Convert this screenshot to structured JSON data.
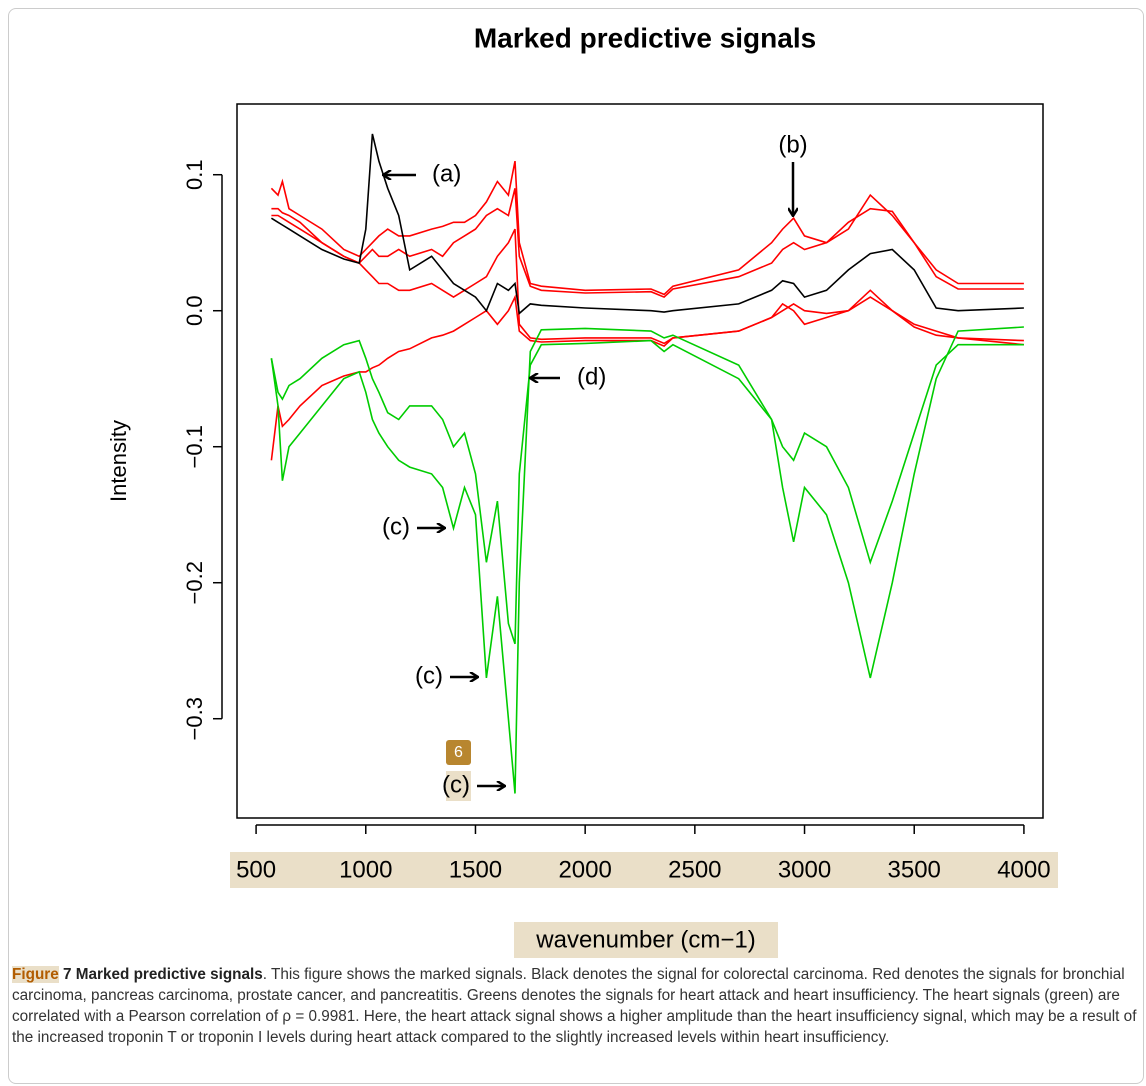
{
  "chart_data": {
    "type": "line",
    "title": "Marked predictive signals",
    "xlabel": "wavenumber (cm−1)",
    "ylabel": "Intensity",
    "xlim": [
      413,
      4087
    ],
    "ylim": [
      -0.373,
      0.152
    ],
    "xticks": [
      500,
      1000,
      1500,
      2000,
      2500,
      3000,
      3500,
      4000
    ],
    "yticks": [
      {
        "value": -0.3,
        "label": "−0.3"
      },
      {
        "value": -0.2,
        "label": "−0.2"
      },
      {
        "value": -0.1,
        "label": "−0.1"
      },
      {
        "value": 0,
        "label": "0.0"
      },
      {
        "value": 0.1,
        "label": "0.1"
      }
    ],
    "x": [
      570,
      600,
      620,
      650,
      700,
      800,
      900,
      970,
      1000,
      1030,
      1060,
      1100,
      1150,
      1200,
      1300,
      1350,
      1400,
      1450,
      1500,
      1550,
      1600,
      1650,
      1680,
      1700,
      1750,
      1800,
      2000,
      2300,
      2360,
      2400,
      2700,
      2850,
      2900,
      2950,
      3000,
      3100,
      3200,
      3300,
      3400,
      3500,
      3600,
      3700,
      4000
    ],
    "series": [
      {
        "color": "#ff0000",
        "values": [
          0.09,
          0.085,
          0.095,
          0.075,
          0.07,
          0.06,
          0.045,
          0.04,
          0.045,
          0.05,
          0.055,
          0.06,
          0.055,
          0.055,
          0.06,
          0.062,
          0.065,
          0.065,
          0.07,
          0.08,
          0.095,
          0.085,
          0.11,
          0.05,
          0.02,
          0.018,
          0.015,
          0.016,
          0.012,
          0.018,
          0.03,
          0.05,
          0.06,
          0.068,
          0.055,
          0.05,
          0.06,
          0.085,
          0.07,
          0.05,
          0.03,
          0.02,
          0.02
        ]
      },
      {
        "color": "#ff0000",
        "values": [
          0.075,
          0.075,
          0.072,
          0.07,
          0.065,
          0.05,
          0.04,
          0.035,
          0.04,
          0.045,
          0.04,
          0.04,
          0.045,
          0.04,
          0.045,
          0.04,
          0.05,
          0.055,
          0.06,
          0.07,
          0.075,
          0.07,
          0.09,
          0.04,
          0.018,
          0.015,
          0.013,
          0.014,
          0.01,
          0.016,
          0.025,
          0.035,
          0.045,
          0.05,
          0.045,
          0.05,
          0.065,
          0.075,
          0.073,
          0.05,
          0.025,
          0.016,
          0.016
        ]
      },
      {
        "color": "#ff0000",
        "values": [
          0.07,
          0.07,
          0.068,
          0.065,
          0.06,
          0.05,
          0.04,
          0.035,
          0.03,
          0.025,
          0.02,
          0.02,
          0.015,
          0.015,
          0.02,
          0.015,
          0.01,
          0.015,
          0.02,
          0.025,
          0.04,
          0.05,
          0.06,
          -0.01,
          -0.02,
          -0.021,
          -0.02,
          -0.02,
          -0.024,
          -0.02,
          -0.015,
          -0.005,
          0.005,
          0,
          -0.01,
          -0.005,
          0,
          0.015,
          0,
          -0.012,
          -0.018,
          -0.02,
          -0.022
        ]
      },
      {
        "color": "#ff0000",
        "values": [
          -0.11,
          -0.07,
          -0.085,
          -0.08,
          -0.07,
          -0.055,
          -0.048,
          -0.045,
          -0.045,
          -0.042,
          -0.04,
          -0.035,
          -0.03,
          -0.028,
          -0.02,
          -0.018,
          -0.015,
          -0.01,
          -0.005,
          0,
          -0.01,
          0,
          0.01,
          -0.015,
          -0.022,
          -0.023,
          -0.022,
          -0.022,
          -0.026,
          -0.02,
          -0.015,
          -0.005,
          0,
          0.005,
          0,
          -0.002,
          0,
          0.01,
          0,
          -0.01,
          -0.015,
          -0.02,
          -0.025
        ]
      },
      {
        "color": "#000000",
        "values": [
          0.068,
          0.065,
          0.063,
          0.06,
          0.055,
          0.045,
          0.038,
          0.035,
          0.06,
          0.13,
          0.11,
          0.09,
          0.07,
          0.03,
          0.04,
          0.03,
          0.02,
          0.015,
          0.01,
          0,
          0.02,
          0.015,
          0.02,
          -0.002,
          0.005,
          0.004,
          0.002,
          0,
          -0.001,
          0,
          0.005,
          0.015,
          0.022,
          0.02,
          0.01,
          0.015,
          0.03,
          0.042,
          0.045,
          0.03,
          0.002,
          0,
          0.002
        ]
      },
      {
        "color": "#00cc00",
        "values": [
          -0.035,
          -0.07,
          -0.125,
          -0.1,
          -0.09,
          -0.07,
          -0.05,
          -0.045,
          -0.06,
          -0.08,
          -0.09,
          -0.1,
          -0.11,
          -0.115,
          -0.12,
          -0.13,
          -0.16,
          -0.13,
          -0.15,
          -0.27,
          -0.21,
          -0.3,
          -0.355,
          -0.2,
          -0.03,
          -0.014,
          -0.013,
          -0.015,
          -0.02,
          -0.018,
          -0.04,
          -0.08,
          -0.13,
          -0.17,
          -0.13,
          -0.15,
          -0.2,
          -0.27,
          -0.2,
          -0.12,
          -0.05,
          -0.015,
          -0.012
        ]
      },
      {
        "color": "#00cc00",
        "values": [
          -0.035,
          -0.06,
          -0.065,
          -0.055,
          -0.05,
          -0.035,
          -0.025,
          -0.022,
          -0.035,
          -0.05,
          -0.06,
          -0.075,
          -0.08,
          -0.07,
          -0.07,
          -0.08,
          -0.1,
          -0.09,
          -0.12,
          -0.185,
          -0.14,
          -0.23,
          -0.245,
          -0.12,
          -0.04,
          -0.025,
          -0.024,
          -0.022,
          -0.03,
          -0.025,
          -0.05,
          -0.08,
          -0.1,
          -0.11,
          -0.09,
          -0.1,
          -0.13,
          -0.185,
          -0.14,
          -0.09,
          -0.04,
          -0.025,
          -0.025
        ]
      }
    ],
    "annotations": [
      "(a)",
      "(b)",
      "(c)",
      "(c)",
      "(c)",
      "(d)"
    ]
  },
  "badge": "6",
  "caption": {
    "label": "Figure",
    "title": " 7 Marked predictive signals",
    "text": ". This figure shows the marked signals. Black denotes the signal for colorectal carcinoma. Red denotes the signals for bronchial carcinoma, pancreas carcinoma, prostate cancer, and pancreatitis. Greens denotes the signals for heart attack and heart insufficiency. The heart signals (green) are correlated with a Pearson correlation of ρ = 0.9981. Here, the heart attack signal shows a higher amplitude than the heart insufficiency signal, which may be a result of the increased troponin T or troponin I levels during heart attack compared to the slightly increased levels within heart insufficiency."
  }
}
